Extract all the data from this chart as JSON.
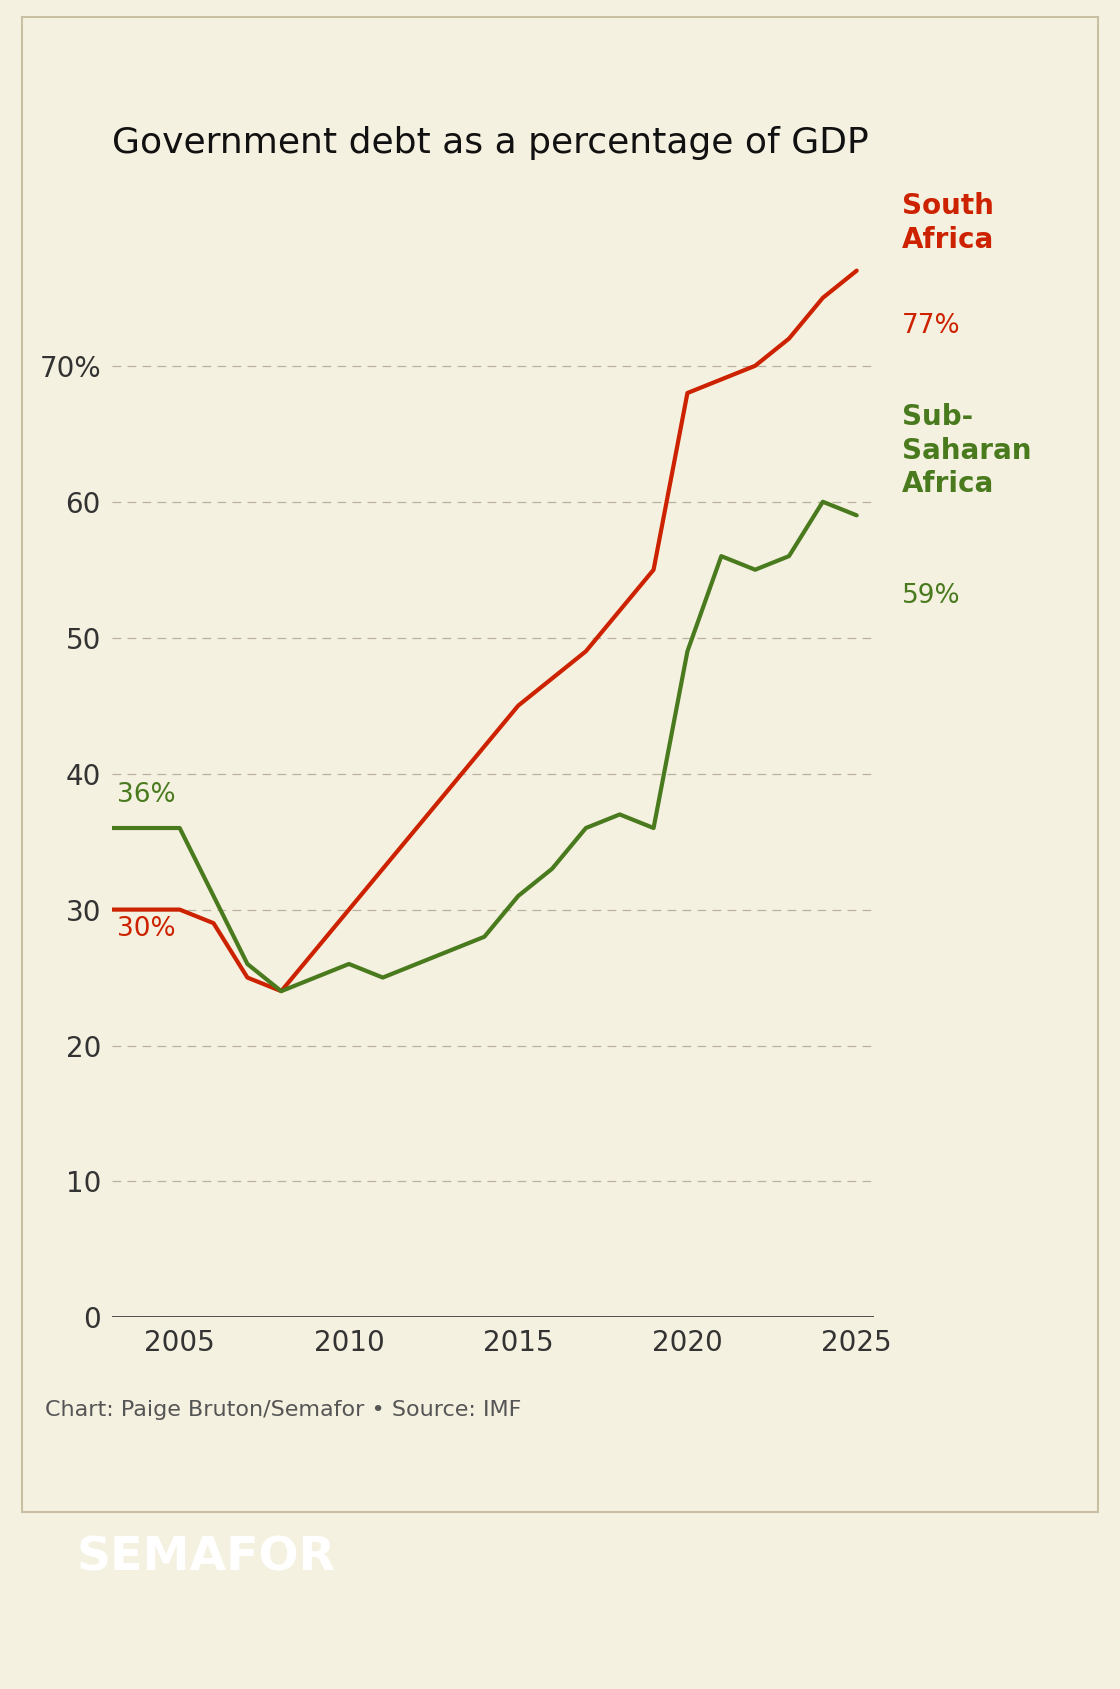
{
  "title": "Government debt as a percentage of GDP",
  "background_color": "#f5f1e0",
  "south_africa": {
    "years": [
      2003,
      2004,
      2005,
      2006,
      2007,
      2008,
      2009,
      2010,
      2011,
      2012,
      2013,
      2014,
      2015,
      2016,
      2017,
      2018,
      2019,
      2020,
      2021,
      2022,
      2023,
      2024,
      2025
    ],
    "values": [
      30,
      30,
      30,
      29,
      25,
      24,
      27,
      30,
      33,
      36,
      39,
      42,
      45,
      47,
      49,
      52,
      55,
      68,
      69,
      70,
      72,
      75,
      77
    ],
    "color": "#cc2200",
    "end_value": "77%",
    "start_value": "30%"
  },
  "sub_saharan": {
    "years": [
      2003,
      2004,
      2005,
      2006,
      2007,
      2008,
      2009,
      2010,
      2011,
      2012,
      2013,
      2014,
      2015,
      2016,
      2017,
      2018,
      2019,
      2020,
      2021,
      2022,
      2023,
      2024,
      2025
    ],
    "values": [
      36,
      36,
      36,
      31,
      26,
      24,
      25,
      26,
      25,
      26,
      27,
      28,
      31,
      33,
      36,
      37,
      36,
      49,
      56,
      55,
      56,
      60,
      59
    ],
    "color": "#4a7a1e",
    "end_value": "59%",
    "start_value": "36%"
  },
  "ylim": [
    0,
    82
  ],
  "xlim": [
    2003,
    2025.5
  ],
  "yticks": [
    0,
    10,
    20,
    30,
    40,
    50,
    60,
    70
  ],
  "ytick_labels": [
    "0",
    "10",
    "20",
    "30",
    "40",
    "50",
    "60",
    "70%"
  ],
  "xticks": [
    2005,
    2010,
    2015,
    2020,
    2025
  ],
  "grid_color": "#b8b0a0",
  "line_width": 3.0,
  "source_text": "Chart: Paige Bruton/Semafor • Source: IMF",
  "semafor_text": "SEMAFOR",
  "semafor_bg": "#0a0a0a",
  "border_color": "#c8c0a0"
}
